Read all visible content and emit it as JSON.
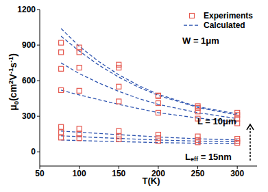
{
  "chart_data": {
    "type": "scatter",
    "xlabel": "T(K)",
    "ylabel": [
      "μ",
      {
        "sub": "0"
      },
      "(cm",
      {
        "sup": "2"
      },
      "V",
      {
        "sup": "-1"
      },
      "s",
      {
        "sup": "-1"
      },
      ")"
    ],
    "xlim": [
      50,
      325
    ],
    "xticks": [
      50,
      100,
      150,
      200,
      250,
      300
    ],
    "ylim": [
      -120,
      1200
    ],
    "yticks": [
      0,
      300,
      600,
      900,
      1200
    ],
    "grid": false,
    "legend": "upper right",
    "annotations": [
      [
        "W = 1μm"
      ],
      [
        "L = 10μm"
      ],
      [
        "L",
        {
          "sub": "eff"
        },
        " = 15nm"
      ]
    ],
    "series": [
      {
        "name": "Experiments",
        "type": "scatter",
        "marker": "square",
        "color": "#e55a50",
        "x": [
          77,
          100,
          150,
          200,
          250,
          300
        ],
        "values": [
          [
            920,
            880,
            735,
            475,
            385,
            330
          ],
          [
            840,
            840,
            710,
            470,
            370,
            310
          ],
          [
            700,
            710,
            550,
            410,
            340,
            280
          ],
          [
            520,
            515,
            425,
            330,
            280,
            240
          ],
          [
            210,
            195,
            175,
            145,
            130,
            110
          ],
          [
            165,
            150,
            130,
            115,
            100,
            90
          ],
          [
            120,
            115,
            105,
            90,
            80,
            75
          ]
        ]
      },
      {
        "name": "Calculated",
        "type": "line",
        "line_style": "dashed",
        "color": "#2f55b0",
        "x": [
          77,
          100,
          125,
          150,
          175,
          200,
          250,
          300
        ],
        "values": [
          [
            1040,
            890,
            760,
            650,
            560,
            485,
            380,
            320
          ],
          [
            975,
            850,
            730,
            630,
            545,
            475,
            375,
            310
          ],
          [
            750,
            660,
            580,
            510,
            450,
            400,
            330,
            280
          ],
          [
            520,
            480,
            440,
            400,
            365,
            330,
            285,
            250
          ],
          [
            175,
            165,
            155,
            145,
            135,
            125,
            110,
            100
          ],
          [
            135,
            128,
            120,
            113,
            106,
            100,
            90,
            85
          ],
          [
            100,
            95,
            90,
            86,
            82,
            78,
            72,
            68
          ]
        ]
      }
    ]
  }
}
